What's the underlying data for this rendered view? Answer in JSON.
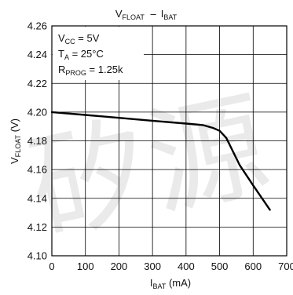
{
  "chart_data": {
    "type": "line",
    "title": {
      "main": "V",
      "sub1": "FLOAT",
      "dash": "–",
      "main2": "I",
      "sub2": "BAT"
    },
    "xlabel": {
      "main": "I",
      "sub": "BAT",
      "unit": " (mA)"
    },
    "ylabel": {
      "main": "V",
      "sub": "FLOAT",
      "unit": " (V)"
    },
    "xlim": [
      0,
      700
    ],
    "ylim": [
      4.1,
      4.26
    ],
    "x_ticks": [
      "0",
      "100",
      "200",
      "300",
      "400",
      "500",
      "600",
      "700"
    ],
    "x_tick_values": [
      0,
      100,
      200,
      300,
      400,
      500,
      600,
      700
    ],
    "y_ticks": [
      "4.26",
      "4.24",
      "4.22",
      "4.20",
      "4.18",
      "4.16",
      "4.14",
      "4.12",
      "4.10"
    ],
    "y_tick_values": [
      4.26,
      4.24,
      4.22,
      4.2,
      4.18,
      4.16,
      4.14,
      4.12,
      4.1
    ],
    "grid": true,
    "annotations": [
      {
        "main": "V",
        "sub": "CC",
        "rest": " = 5V"
      },
      {
        "main": "T",
        "sub": "A",
        "rest": " = 25°C"
      },
      {
        "main": "R",
        "sub": "PROG",
        "rest": " = 1.25k"
      }
    ],
    "series": [
      {
        "x": [
          0,
          100,
          200,
          300,
          400,
          450,
          480,
          500,
          520,
          560,
          600,
          650
        ],
        "y": [
          4.2,
          4.198,
          4.196,
          4.194,
          4.192,
          4.191,
          4.189,
          4.187,
          4.182,
          4.163,
          4.149,
          4.132
        ]
      }
    ],
    "colors": {
      "line": "#000000",
      "grid": "#000000"
    }
  }
}
